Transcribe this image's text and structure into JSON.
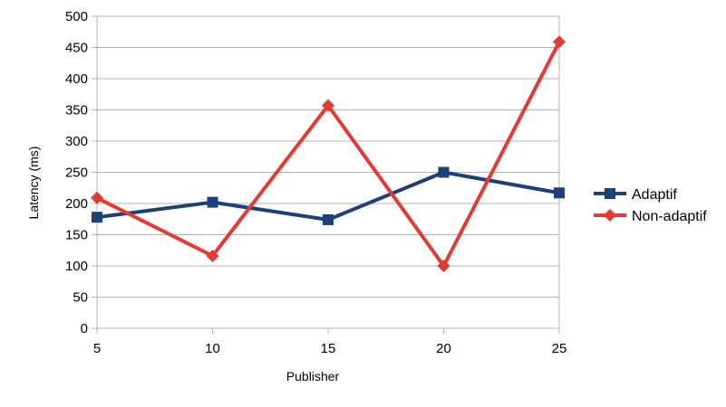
{
  "chart_data": {
    "type": "line",
    "title": "",
    "xlabel": "Publisher",
    "ylabel": "Latency (ms)",
    "x": [
      "5",
      "10",
      "15",
      "20",
      "25"
    ],
    "ylim": [
      0,
      500
    ],
    "yticks": [
      "0",
      "50",
      "100",
      "150",
      "200",
      "250",
      "300",
      "350",
      "400",
      "450",
      "500"
    ],
    "grid": "horizontal",
    "legend_position": "right",
    "series": [
      {
        "name": "Adaptif",
        "values": [
          178,
          202,
          174,
          250,
          217
        ],
        "color": "#1f3f7a",
        "marker": "square"
      },
      {
        "name": "Non-adaptif",
        "values": [
          209,
          116,
          357,
          100,
          459
        ],
        "color": "#e33b34",
        "marker": "diamond"
      }
    ]
  }
}
